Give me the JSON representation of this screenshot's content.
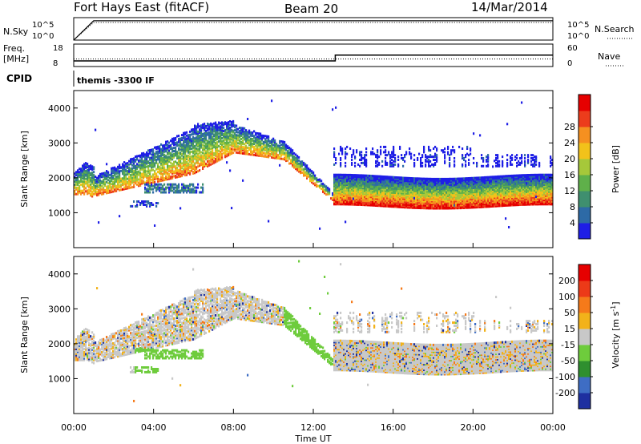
{
  "header": {
    "station": "Fort Hays East (fitACF)",
    "beam": "Beam 20",
    "date": "14/Mar/2014"
  },
  "chart_data": [
    {
      "type": "line",
      "panel": "noise",
      "left_label": "N.Sky",
      "right_label": "N.Search",
      "left_ticks": [
        "10^5",
        "10^0"
      ],
      "right_ticks": [
        "10^5",
        "10^0"
      ],
      "x_hours": [
        0,
        1,
        24
      ],
      "series": [
        {
          "values": [
            1,
            20000,
            20000
          ]
        },
        {
          "values": [
            1,
            8000,
            8000
          ]
        }
      ]
    },
    {
      "type": "line",
      "panel": "frequency",
      "left_label": "Freq.\n[MHz]",
      "right_label": "Nave",
      "left_ticks": [
        "18",
        "8"
      ],
      "right_ticks": [
        "60",
        "0"
      ],
      "x_hours": [
        0,
        1.3,
        13.1,
        24
      ],
      "series": [
        {
          "values": [
            10.5,
            10.5,
            13.1,
            13.1
          ]
        },
        {
          "values": [
            20,
            20,
            20,
            20
          ]
        }
      ]
    },
    {
      "type": "table",
      "panel": "cpid",
      "label": "CPID",
      "program": "themis -3300 IF"
    },
    {
      "type": "heatmap",
      "panel": "power",
      "ylabel": "Slant Range [km]",
      "yticks": [
        "1000",
        "2000",
        "3000",
        "4000"
      ],
      "ylim": [
        0,
        4500
      ],
      "colorbar_label": "Power [dB]",
      "colorbar_ticks": [
        "4",
        "8",
        "12",
        "16",
        "20",
        "24",
        "28"
      ],
      "colorbar_colors": [
        "#1e1ee6",
        "#2d6aa6",
        "#3f8f6f",
        "#5fb04a",
        "#a6c83a",
        "#f2c21a",
        "#f59020",
        "#ec3c1c",
        "#e60000"
      ]
    },
    {
      "type": "heatmap",
      "panel": "velocity",
      "ylabel": "Slant Range [km]",
      "yticks": [
        "1000",
        "2000",
        "3000",
        "4000"
      ],
      "ylim": [
        0,
        4500
      ],
      "colorbar_label": "Velocity [m s",
      "colorbar_label_sup": "-1",
      "colorbar_label_end": "]",
      "colorbar_ticks": [
        "200",
        "100",
        "50",
        "15",
        "-15",
        "-50",
        "-100",
        "-200"
      ],
      "colorbar_colors": [
        "#1e2fa0",
        "#3e6dc4",
        "#2f8f2f",
        "#6ecc3c",
        "#c8c8c8",
        "#f2b21a",
        "#f57a1a",
        "#ec3a18",
        "#e60000"
      ]
    }
  ],
  "x_axis": {
    "ticks": [
      "00:00",
      "04:00",
      "08:00",
      "12:00",
      "16:00",
      "20:00",
      "00:00"
    ],
    "label": "Time UT"
  }
}
